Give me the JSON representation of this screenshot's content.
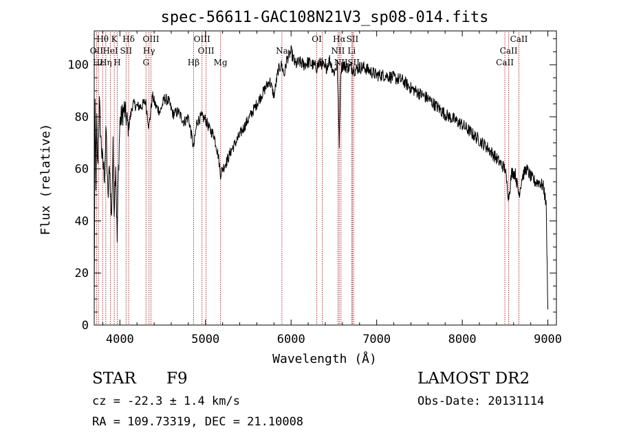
{
  "chart_data": {
    "type": "line",
    "title": "spec-56611-GAC108N21V3_sp08-014.fits",
    "xlabel": "Wavelength (Å)",
    "ylabel": "Flux (relative)",
    "xlim": [
      3700,
      9100
    ],
    "ylim": [
      0,
      113
    ],
    "x_ticks": [
      4000,
      5000,
      6000,
      7000,
      8000,
      9000
    ],
    "y_ticks": [
      0,
      20,
      40,
      60,
      80,
      100
    ],
    "x_tick_labels": [
      "4000",
      "5000",
      "6000",
      "7000",
      "8000",
      "9000"
    ],
    "y_tick_labels": [
      "0",
      "20",
      "40",
      "60",
      "80",
      "100"
    ],
    "series": [
      {
        "x": [
          3700,
          3710,
          3720,
          3730,
          3740,
          3760,
          3780,
          3800,
          3820,
          3840,
          3860,
          3880,
          3900,
          3920,
          3933,
          3950,
          3968,
          3980,
          4000,
          4050,
          4101,
          4150,
          4200,
          4250,
          4300,
          4340,
          4380,
          4420,
          4470,
          4520,
          4570,
          4620,
          4680,
          4750,
          4800,
          4861,
          4900,
          4950,
          5000,
          5050,
          5100,
          5150,
          5175,
          5200,
          5250,
          5300,
          5350,
          5400,
          5450,
          5500,
          5550,
          5600,
          5650,
          5700,
          5750,
          5800,
          5850,
          5890,
          5920,
          5950,
          6000,
          6050,
          6100,
          6150,
          6200,
          6250,
          6300,
          6350,
          6400,
          6450,
          6500,
          6540,
          6563,
          6580,
          6600,
          6650,
          6700,
          6750,
          6800,
          6850,
          6900,
          6950,
          7000,
          7100,
          7200,
          7300,
          7400,
          7500,
          7600,
          7700,
          7800,
          7900,
          8000,
          8100,
          8200,
          8300,
          8400,
          8500,
          8542,
          8580,
          8620,
          8662,
          8700,
          8750,
          8800,
          8850,
          8900,
          8950,
          8980,
          9000
        ],
        "y": [
          10,
          82,
          55,
          78,
          60,
          85,
          70,
          62,
          58,
          75,
          48,
          62,
          40,
          68,
          44,
          63,
          32,
          55,
          78,
          83,
          76,
          85,
          84,
          84,
          86,
          76,
          88,
          84,
          82,
          87,
          86,
          81,
          82,
          78,
          80,
          68,
          78,
          80,
          79,
          75,
          73,
          65,
          58,
          60,
          63,
          67,
          70,
          73,
          76,
          79,
          82,
          85,
          88,
          91,
          94,
          88,
          98,
          100,
          96,
          102,
          105,
          100,
          101,
          100,
          101,
          100,
          99,
          101,
          98,
          102,
          97,
          100,
          70,
          98,
          100,
          99,
          99,
          98,
          99,
          99,
          98,
          97,
          96,
          96,
          95,
          94,
          91,
          89,
          87,
          84,
          81,
          79,
          77,
          74,
          71,
          68,
          64,
          60,
          49,
          59,
          58,
          50,
          57,
          60,
          57,
          55,
          55,
          53,
          46,
          6
        ]
      }
    ],
    "line_markers": [
      {
        "label": "Hθ",
        "x": 3798,
        "row": 1
      },
      {
        "label": "OII",
        "x": 3727,
        "row": 2
      },
      {
        "label": "Hε",
        "x": 3750,
        "row": 3
      },
      {
        "label": "K",
        "x": 3934,
        "row": 1
      },
      {
        "label": "HeI",
        "x": 3889,
        "row": 2
      },
      {
        "label": "Hη",
        "x": 3835,
        "row": 3
      },
      {
        "label": "Hδ",
        "x": 4102,
        "row": 1
      },
      {
        "label": "SII",
        "x": 4072,
        "row": 2
      },
      {
        "label": "H",
        "x": 3969,
        "row": 3
      },
      {
        "label": "OIII",
        "x": 4363,
        "row": 1
      },
      {
        "label": "Hγ",
        "x": 4340,
        "row": 2
      },
      {
        "label": "G",
        "x": 4305,
        "row": 3
      },
      {
        "label": "Hβ",
        "x": 4861,
        "row": 3
      },
      {
        "label": "OIII",
        "x": 4959,
        "row": 1
      },
      {
        "label": "OIII",
        "x": 5007,
        "row": 2
      },
      {
        "label": "Mg",
        "x": 5175,
        "row": 3
      },
      {
        "label": "Na",
        "x": 5893,
        "row": 2
      },
      {
        "label": "OI",
        "x": 6300,
        "row": 1
      },
      {
        "label": "OI",
        "x": 6364,
        "row": 3
      },
      {
        "label": "Hα",
        "x": 6563,
        "row": 1
      },
      {
        "label": "SII",
        "x": 6717,
        "row": 1
      },
      {
        "label": "NII",
        "x": 6548,
        "row": 2
      },
      {
        "label": "Li",
        "x": 6708,
        "row": 2
      },
      {
        "label": "NII",
        "x": 6583,
        "row": 3
      },
      {
        "label": "SII",
        "x": 6731,
        "row": 3
      },
      {
        "label": "CaII",
        "x": 8662,
        "row": 1
      },
      {
        "label": "CaII",
        "x": 8542,
        "row": 2
      },
      {
        "label": "CaII",
        "x": 8498,
        "row": 3
      }
    ]
  },
  "info": {
    "object_class": "STAR",
    "subclass": "F9",
    "redshift": "cz = -22.3 ± 1.4 km/s",
    "coords": "RA = 109.73319, DEC =  21.10008",
    "survey": "LAMOST DR2",
    "obs_date": "Obs-Date: 20131114"
  },
  "colors": {
    "spectrum": "#000000",
    "marker_line": "#b03030"
  }
}
